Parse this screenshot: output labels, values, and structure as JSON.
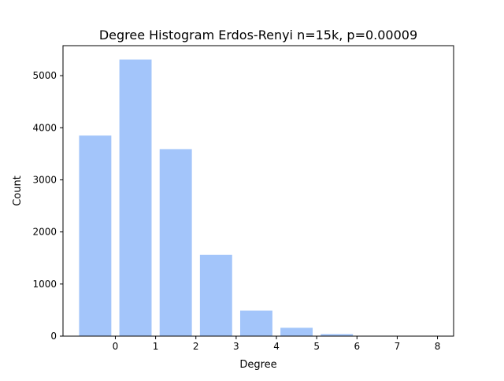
{
  "chart_data": {
    "type": "bar",
    "title": "Degree Histogram Erdos-Renyi n=15k, p=0.00009",
    "xlabel": "Degree",
    "ylabel": "Count",
    "categories": [
      "0",
      "1",
      "2",
      "3",
      "4",
      "5",
      "6",
      "7",
      "8"
    ],
    "x": [
      -0.5,
      0.5,
      1.5,
      2.5,
      3.5,
      4.5,
      5.5,
      6.5,
      7.5
    ],
    "values": [
      3850,
      5310,
      3590,
      1560,
      490,
      160,
      40,
      8,
      2
    ],
    "bar_width": 0.8,
    "xlim": [
      -1.3,
      8.4
    ],
    "ylim": [
      0,
      5576
    ],
    "xticks": [
      0,
      1,
      2,
      3,
      4,
      5,
      6,
      7,
      8
    ],
    "yticks": [
      0,
      1000,
      2000,
      3000,
      4000,
      5000
    ],
    "grid": false,
    "legend": "none",
    "bar_color": "#a3c5fa"
  }
}
